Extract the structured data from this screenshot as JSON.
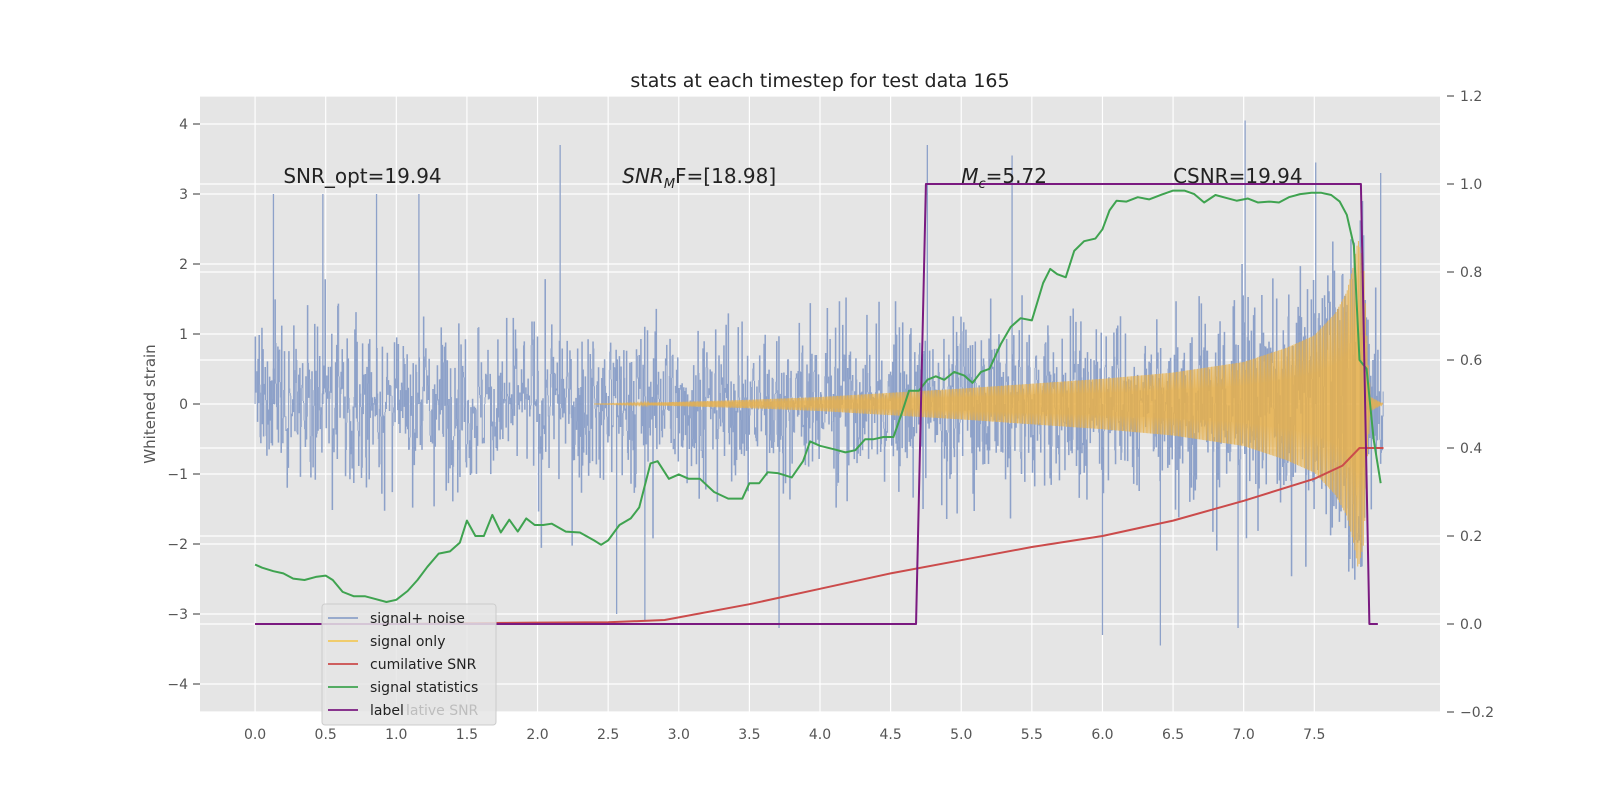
{
  "chart_data": {
    "type": "line",
    "title": "stats at each timestep for test data 165",
    "ylabel": "Whitened strain",
    "xlabel": "",
    "xlim": [
      -0.39,
      8.39
    ],
    "ylim": [
      -4.4,
      4.4
    ],
    "y2lim": [
      -0.2,
      1.2
    ],
    "grid": true,
    "x_ticks": [
      "0.0",
      "0.5",
      "1.0",
      "1.5",
      "2.0",
      "2.5",
      "3.0",
      "3.5",
      "4.0",
      "4.5",
      "5.0",
      "5.5",
      "6.0",
      "6.5",
      "7.0",
      "7.5"
    ],
    "y_ticks": [
      "4",
      "3",
      "2",
      "1",
      "0",
      "−1",
      "−2",
      "−3",
      "−4"
    ],
    "y2_ticks": [
      "1.2",
      "1.0",
      "0.8",
      "0.6",
      "0.4",
      "0.2",
      "0.0",
      "−0.2"
    ],
    "annotations": [
      {
        "text": "SNR_opt=19.94",
        "x": 0.2,
        "y": 3.3
      },
      {
        "sym": "SNR",
        "sub": "M",
        "rest": "F=[18.98]",
        "x": 2.6,
        "y": 3.3
      },
      {
        "sym": "M",
        "sub": "c",
        "rest": "=5.72",
        "x": 5.0,
        "y": 3.3
      },
      {
        "text": "CSNR=19.94",
        "x": 6.5,
        "y": 3.3
      }
    ],
    "legend": {
      "placement": "lower-left",
      "ghost_text": "lative SNR",
      "entries": [
        {
          "label": "signal+ noise",
          "color": "#8da1c9"
        },
        {
          "label": "signal only",
          "color": "#f2c85b"
        },
        {
          "label": "cumilative SNR",
          "color": "#cb4b4b"
        },
        {
          "label": "signal statistics",
          "color": "#3fa350"
        },
        {
          "label": "label",
          "color": "#7a1a80"
        }
      ]
    },
    "series": [
      {
        "name": "signal+ noise",
        "axis": "left",
        "color": "#8da1c9",
        "x_range": [
          0.0,
          7.99
        ],
        "typical_amplitude": 1.6,
        "extremes": [
          [
            0.13,
            3.0
          ],
          [
            0.48,
            3.0
          ],
          [
            0.86,
            3.0
          ],
          [
            1.16,
            3.0
          ],
          [
            2.16,
            3.7
          ],
          [
            4.76,
            3.7
          ],
          [
            5.36,
            3.55
          ],
          [
            7.01,
            4.05
          ],
          [
            7.51,
            3.45
          ],
          [
            7.97,
            3.3
          ],
          [
            2.56,
            -3.0
          ],
          [
            2.76,
            -3.1
          ],
          [
            3.71,
            -3.2
          ],
          [
            6.0,
            -3.3
          ],
          [
            6.41,
            -3.45
          ],
          [
            6.96,
            -3.2
          ]
        ]
      },
      {
        "name": "signal only",
        "axis": "left",
        "color": "#e8b04a",
        "x_range": [
          2.4,
          7.99
        ],
        "envelope": [
          [
            2.4,
            0.0
          ],
          [
            3.0,
            0.03
          ],
          [
            3.5,
            0.06
          ],
          [
            4.0,
            0.1
          ],
          [
            4.5,
            0.16
          ],
          [
            5.0,
            0.22
          ],
          [
            5.5,
            0.29
          ],
          [
            6.0,
            0.36
          ],
          [
            6.5,
            0.45
          ],
          [
            7.0,
            0.6
          ],
          [
            7.3,
            0.8
          ],
          [
            7.5,
            0.98
          ],
          [
            7.65,
            1.3
          ],
          [
            7.73,
            1.6
          ],
          [
            7.78,
            2.0
          ],
          [
            7.81,
            2.35
          ],
          [
            7.85,
            2.0
          ],
          [
            7.88,
            0.6
          ],
          [
            7.9,
            0.1
          ],
          [
            7.99,
            0.0
          ]
        ]
      },
      {
        "name": "cumilative SNR",
        "axis": "right",
        "color": "#cb4b4b",
        "x": [
          0.0,
          0.5,
          1.0,
          1.5,
          2.0,
          2.5,
          2.9,
          3.5,
          4.0,
          4.5,
          5.0,
          5.5,
          6.0,
          6.5,
          7.0,
          7.5,
          7.7,
          7.82,
          7.99
        ],
        "y": [
          0.0,
          0.0,
          0.0,
          0.002,
          0.003,
          0.004,
          0.009,
          0.045,
          0.08,
          0.115,
          0.145,
          0.175,
          0.2,
          0.235,
          0.28,
          0.33,
          0.36,
          0.4,
          0.4
        ]
      },
      {
        "name": "signal statistics",
        "axis": "right",
        "color": "#3fa350",
        "x": [
          0.0,
          0.05,
          0.13,
          0.2,
          0.27,
          0.35,
          0.43,
          0.5,
          0.55,
          0.62,
          0.7,
          0.78,
          0.85,
          0.93,
          1.0,
          1.08,
          1.15,
          1.22,
          1.3,
          1.38,
          1.45,
          1.5,
          1.56,
          1.62,
          1.68,
          1.74,
          1.8,
          1.86,
          1.92,
          1.98,
          2.04,
          2.1,
          2.2,
          2.3,
          2.4,
          2.45,
          2.5,
          2.58,
          2.66,
          2.72,
          2.8,
          2.85,
          2.93,
          3.0,
          3.07,
          3.15,
          3.25,
          3.35,
          3.45,
          3.5,
          3.57,
          3.63,
          3.7,
          3.8,
          3.88,
          3.93,
          4.0,
          4.1,
          4.18,
          4.25,
          4.32,
          4.38,
          4.45,
          4.52,
          4.58,
          4.63,
          4.7,
          4.76,
          4.82,
          4.88,
          4.95,
          5.02,
          5.08,
          5.14,
          5.2,
          5.28,
          5.35,
          5.42,
          5.5,
          5.58,
          5.63,
          5.68,
          5.74,
          5.8,
          5.87,
          5.95,
          6.0,
          6.05,
          6.1,
          6.17,
          6.25,
          6.33,
          6.42,
          6.5,
          6.58,
          6.65,
          6.72,
          6.8,
          6.88,
          6.95,
          7.03,
          7.1,
          7.18,
          7.25,
          7.32,
          7.4,
          7.48,
          7.55,
          7.62,
          7.68,
          7.73,
          7.78,
          7.82,
          7.87,
          7.92,
          7.97
        ],
        "y": [
          0.135,
          0.128,
          0.12,
          0.115,
          0.103,
          0.1,
          0.107,
          0.11,
          0.1,
          0.073,
          0.063,
          0.063,
          0.057,
          0.05,
          0.055,
          0.075,
          0.1,
          0.13,
          0.16,
          0.165,
          0.185,
          0.235,
          0.2,
          0.2,
          0.248,
          0.208,
          0.237,
          0.21,
          0.24,
          0.225,
          0.225,
          0.228,
          0.21,
          0.208,
          0.19,
          0.18,
          0.19,
          0.225,
          0.24,
          0.265,
          0.365,
          0.37,
          0.33,
          0.34,
          0.33,
          0.33,
          0.3,
          0.285,
          0.285,
          0.32,
          0.32,
          0.345,
          0.343,
          0.333,
          0.37,
          0.415,
          0.405,
          0.397,
          0.39,
          0.395,
          0.42,
          0.42,
          0.425,
          0.425,
          0.48,
          0.53,
          0.53,
          0.555,
          0.563,
          0.555,
          0.573,
          0.565,
          0.548,
          0.573,
          0.58,
          0.636,
          0.675,
          0.695,
          0.69,
          0.775,
          0.807,
          0.795,
          0.788,
          0.848,
          0.87,
          0.876,
          0.897,
          0.94,
          0.962,
          0.96,
          0.97,
          0.965,
          0.976,
          0.985,
          0.985,
          0.977,
          0.958,
          0.975,
          0.968,
          0.962,
          0.967,
          0.958,
          0.96,
          0.958,
          0.97,
          0.977,
          0.98,
          0.98,
          0.975,
          0.96,
          0.93,
          0.86,
          0.6,
          0.58,
          0.42,
          0.32
        ]
      },
      {
        "name": "label",
        "axis": "right",
        "color": "#7a1a80",
        "x": [
          0.0,
          4.68,
          4.75,
          7.83,
          7.89,
          7.95
        ],
        "y": [
          0.0,
          0.0,
          1.0,
          1.0,
          0.0,
          0.0
        ]
      }
    ]
  }
}
